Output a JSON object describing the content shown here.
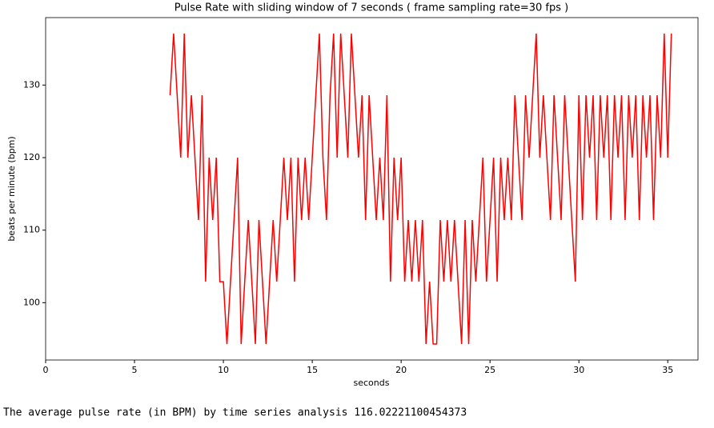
{
  "chart_data": {
    "type": "line",
    "title": "Pulse Rate with sliding window of 7 seconds  ( frame sampling rate=30 fps )",
    "xlabel": "seconds",
    "ylabel": "beats per minute (bpm)",
    "color": "#ff0000",
    "x": [
      7.0,
      7.2,
      7.4,
      7.6,
      7.8,
      8.0,
      8.2,
      8.4,
      8.6,
      8.8,
      9.0,
      9.2,
      9.4,
      9.6,
      9.8,
      10.0,
      10.2,
      10.4,
      10.6,
      10.8,
      11.0,
      11.2,
      11.4,
      11.6,
      11.8,
      12.0,
      12.2,
      12.4,
      12.6,
      12.8,
      13.0,
      13.2,
      13.4,
      13.6,
      13.8,
      14.0,
      14.2,
      14.4,
      14.6,
      14.8,
      15.0,
      15.2,
      15.4,
      15.6,
      15.8,
      16.0,
      16.2,
      16.4,
      16.6,
      16.8,
      17.0,
      17.2,
      17.4,
      17.6,
      17.8,
      18.0,
      18.2,
      18.4,
      18.6,
      18.8,
      19.0,
      19.2,
      19.4,
      19.6,
      19.8,
      20.0,
      20.2,
      20.4,
      20.6,
      20.8,
      21.0,
      21.2,
      21.4,
      21.6,
      21.8,
      22.0,
      22.2,
      22.4,
      22.6,
      22.8,
      23.0,
      23.2,
      23.4,
      23.6,
      23.8,
      24.0,
      24.2,
      24.4,
      24.6,
      24.8,
      25.0,
      25.2,
      25.4,
      25.6,
      25.8,
      26.0,
      26.2,
      26.4,
      26.6,
      26.8,
      27.0,
      27.2,
      27.4,
      27.6,
      27.8,
      28.0,
      28.2,
      28.4,
      28.6,
      28.8,
      29.0,
      29.2,
      29.4,
      29.6,
      29.8,
      30.0,
      30.2,
      30.4,
      30.6,
      30.8,
      31.0,
      31.2,
      31.4,
      31.6,
      31.8,
      32.0,
      32.2,
      32.4,
      32.6,
      32.8,
      33.0,
      33.2,
      33.4,
      33.6,
      33.8,
      34.0,
      34.2,
      34.4,
      34.6,
      34.8,
      35.0,
      35.2
    ],
    "values": [
      128.6,
      137.1,
      128.6,
      120,
      137.1,
      120,
      128.6,
      120,
      111.4,
      128.6,
      102.9,
      120,
      111.4,
      120,
      102.9,
      102.9,
      94.3,
      102.9,
      111.4,
      120,
      94.3,
      102.9,
      111.4,
      102.9,
      94.3,
      111.4,
      102.9,
      94.3,
      102.9,
      111.4,
      102.9,
      111.4,
      120,
      111.4,
      120,
      102.9,
      120,
      111.4,
      120,
      111.4,
      120,
      128.6,
      137.1,
      120,
      111.4,
      128.6,
      137.1,
      120,
      137.1,
      128.6,
      120,
      137.1,
      128.6,
      120,
      128.6,
      111.4,
      128.6,
      120,
      111.4,
      120,
      111.4,
      128.6,
      102.9,
      120,
      111.4,
      120,
      102.9,
      111.4,
      102.9,
      111.4,
      102.9,
      111.4,
      94.3,
      102.9,
      94.3,
      94.3,
      111.4,
      102.9,
      111.4,
      102.9,
      111.4,
      102.9,
      94.3,
      111.4,
      94.3,
      111.4,
      102.9,
      111.4,
      120,
      102.9,
      111.4,
      120,
      102.9,
      120,
      111.4,
      120,
      111.4,
      128.6,
      120,
      111.4,
      128.6,
      120,
      128.6,
      137.1,
      120,
      128.6,
      120,
      111.4,
      128.6,
      120,
      111.4,
      128.6,
      120,
      111.4,
      102.9,
      128.6,
      111.4,
      128.6,
      120,
      128.6,
      111.4,
      128.6,
      120,
      128.6,
      111.4,
      128.6,
      120,
      128.6,
      111.4,
      128.6,
      120,
      128.6,
      111.4,
      128.6,
      120,
      128.6,
      111.4,
      128.6,
      120,
      137.1,
      120,
      137.1
    ],
    "xlim": [
      0,
      36.7
    ],
    "ylim": [
      92.1,
      139.3
    ],
    "xticks": [
      0,
      5,
      10,
      15,
      20,
      25,
      30,
      35
    ],
    "yticks": [
      100,
      110,
      120,
      130
    ]
  },
  "output_text": "The average pulse rate (in BPM) by time series analysis  116.02221100454373"
}
